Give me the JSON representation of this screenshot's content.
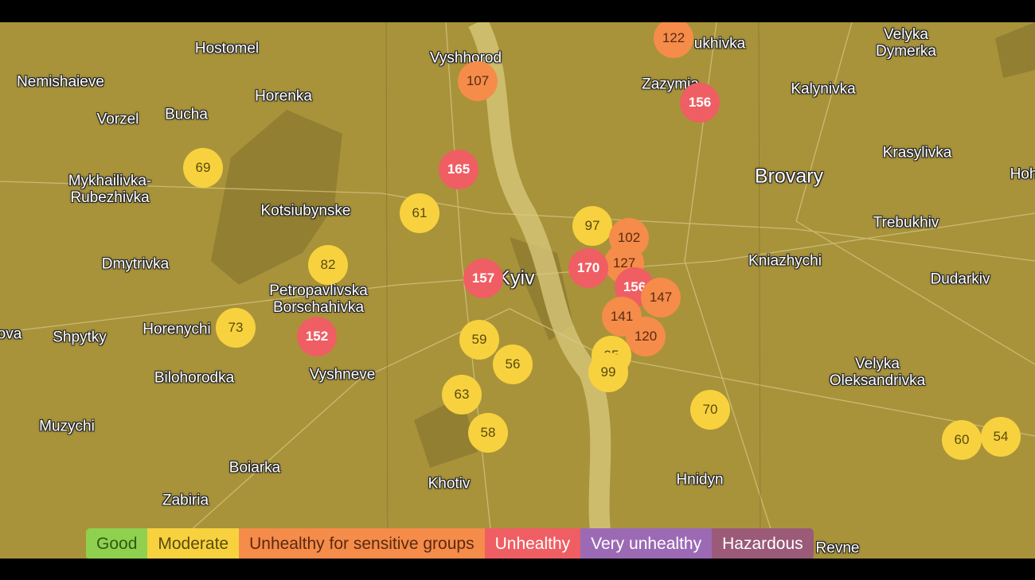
{
  "places": [
    "Hostomel",
    "Vyshhorod",
    "Nemishaieve",
    "Vorzel",
    "Bucha",
    "Horenka",
    "Zazymia",
    "Kalynivka",
    "Velyka\nDymerka",
    "Mykhailivka-\nRubezhivka",
    "Kotsiubynske",
    "Brovary",
    "Krasylivka",
    "Dmytrivka",
    "Petropavlivska\nBorschahivka",
    "Trebukhiv",
    "Kniazhychi",
    "Dudarkiv",
    "Shpytky",
    "Horenychi",
    "Kyiv",
    "Bilohorodka",
    "Vyshneve",
    "Velyka\nOleksandrivka",
    "Muzychi",
    "Boiarka",
    "Zabiria",
    "Khotiv",
    "Hnidyn",
    "Revne",
    "ukhivka",
    "Hoh",
    "ova"
  ],
  "markers": [
    {
      "value": "122",
      "level": "usg"
    },
    {
      "value": "107",
      "level": "usg"
    },
    {
      "value": "156",
      "level": "unhealthy"
    },
    {
      "value": "69",
      "level": "moderate"
    },
    {
      "value": "165",
      "level": "unhealthy"
    },
    {
      "value": "61",
      "level": "moderate"
    },
    {
      "value": "97",
      "level": "moderate"
    },
    {
      "value": "102",
      "level": "usg"
    },
    {
      "value": "127",
      "level": "usg"
    },
    {
      "value": "170",
      "level": "unhealthy"
    },
    {
      "value": "82",
      "level": "moderate"
    },
    {
      "value": "157",
      "level": "unhealthy"
    },
    {
      "value": "156",
      "level": "unhealthy"
    },
    {
      "value": "147",
      "level": "usg"
    },
    {
      "value": "141",
      "level": "usg"
    },
    {
      "value": "73",
      "level": "moderate"
    },
    {
      "value": "152",
      "level": "unhealthy"
    },
    {
      "value": "120",
      "level": "usg"
    },
    {
      "value": "59",
      "level": "moderate"
    },
    {
      "value": "95",
      "level": "moderate"
    },
    {
      "value": "99",
      "level": "moderate"
    },
    {
      "value": "56",
      "level": "moderate"
    },
    {
      "value": "63",
      "level": "moderate"
    },
    {
      "value": "70",
      "level": "moderate"
    },
    {
      "value": "58",
      "level": "moderate"
    },
    {
      "value": "60",
      "level": "moderate"
    },
    {
      "value": "54",
      "level": "moderate"
    }
  ],
  "legend": [
    {
      "label": "Good",
      "color": "#8fd14f"
    },
    {
      "label": "Moderate",
      "color": "#f7d23e"
    },
    {
      "label": "Unhealthy for sensitive groups",
      "color": "#f58c4a"
    },
    {
      "label": "Unhealthy",
      "color": "#ef5e63"
    },
    {
      "label": "Very unhealthy",
      "color": "#9c6ab5"
    },
    {
      "label": "Hazardous",
      "color": "#9a5a78"
    }
  ]
}
